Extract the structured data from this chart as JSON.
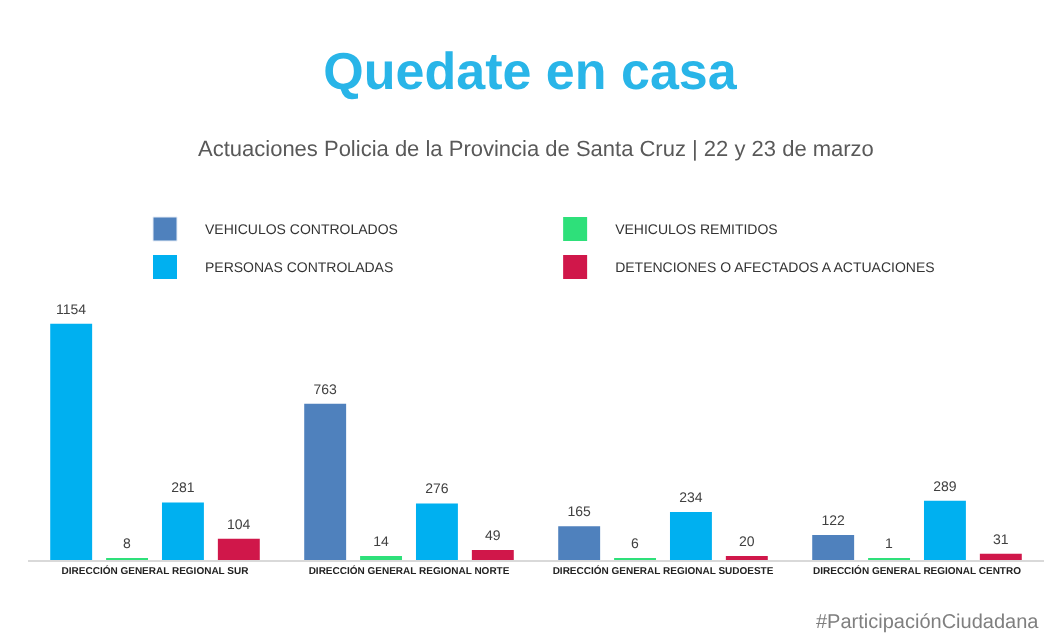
{
  "chart_data": {
    "type": "bar",
    "title": "Quedate en casa",
    "subtitle": "Actuaciones Policia de la Provincia de Santa Cruz | 22 y 23 de marzo",
    "categories": [
      "DIRECCIÓN GENERAL REGIONAL SUR",
      "DIRECCIÓN GENERAL REGIONAL NORTE",
      "DIRECCIÓN GENERAL REGIONAL SUDOESTE",
      "DIRECCIÓN GENERAL REGIONAL CENTRO"
    ],
    "series": [
      {
        "name": "VEHICULOS CONTROLADOS",
        "color": "#4f81bd",
        "colors": [
          "#00b0f0",
          "#4f81bd",
          "#4f81bd",
          "#4f81bd"
        ],
        "values": [
          1154,
          763,
          165,
          122
        ]
      },
      {
        "name": "VEHICULOS REMITIDOS",
        "color": "#2ee07a",
        "values": [
          8,
          14,
          6,
          1
        ]
      },
      {
        "name": "PERSONAS CONTROLADAS",
        "color": "#00b0f0",
        "values": [
          281,
          276,
          234,
          289
        ]
      },
      {
        "name": "DETENCIONES O AFECTADOS A ACTUACIONES",
        "color": "#d0174a",
        "values": [
          104,
          49,
          20,
          31
        ]
      }
    ],
    "data_labels": true,
    "legend": "top",
    "tick_labels": "x",
    "annotations": [
      "#ParticipaciónCiudadana"
    ]
  }
}
